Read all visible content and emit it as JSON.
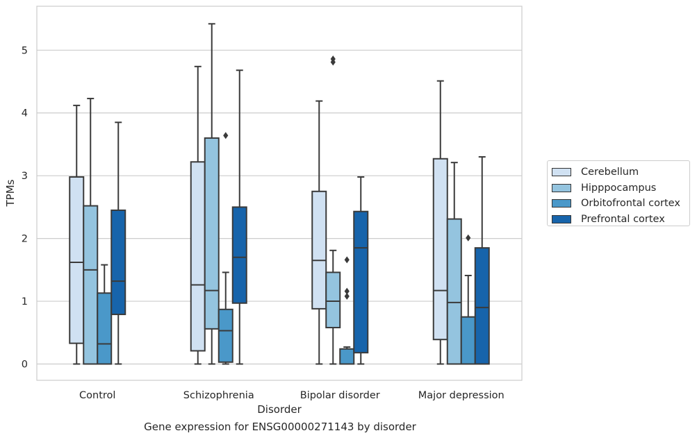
{
  "caption": "Gene expression for ENSG00000271143 by disorder",
  "chart_data": {
    "type": "box",
    "xlabel": "Disorder",
    "ylabel": "TPMs",
    "ylim": [
      -0.26,
      5.7
    ],
    "yticks": [
      0,
      1,
      2,
      3,
      4,
      5
    ],
    "grid": "horizontal",
    "legend_position": "right",
    "categories": [
      "Control",
      "Schizophrenia",
      "Bipolar disorder",
      "Major depression"
    ],
    "series": [
      {
        "name": "Cerebellum",
        "color": "#d0e1f2",
        "boxes": [
          {
            "whislo": 0.0,
            "q1": 0.33,
            "med": 1.62,
            "q3": 2.98,
            "whishi": 4.12,
            "fliers": []
          },
          {
            "whislo": 0.0,
            "q1": 0.21,
            "med": 1.26,
            "q3": 3.22,
            "whishi": 4.74,
            "fliers": []
          },
          {
            "whislo": 0.0,
            "q1": 0.88,
            "med": 1.65,
            "q3": 2.75,
            "whishi": 4.19,
            "fliers": []
          },
          {
            "whislo": 0.0,
            "q1": 0.39,
            "med": 1.17,
            "q3": 3.27,
            "whishi": 4.51,
            "fliers": []
          }
        ]
      },
      {
        "name": "Hipppocampus",
        "color": "#94c4df",
        "boxes": [
          {
            "whislo": 0.0,
            "q1": 0.0,
            "med": 1.5,
            "q3": 2.52,
            "whishi": 4.23,
            "fliers": []
          },
          {
            "whislo": 0.0,
            "q1": 0.56,
            "med": 1.17,
            "q3": 3.6,
            "whishi": 5.42,
            "fliers": []
          },
          {
            "whislo": 0.0,
            "q1": 0.58,
            "med": 1.0,
            "q3": 1.46,
            "whishi": 1.81,
            "fliers": [
              4.81,
              4.86
            ]
          },
          {
            "whislo": 0.0,
            "q1": 0.0,
            "med": 0.98,
            "q3": 2.31,
            "whishi": 3.21,
            "fliers": []
          }
        ]
      },
      {
        "name": "Orbitofrontal cortex",
        "color": "#4a98c9",
        "boxes": [
          {
            "whislo": 0.0,
            "q1": 0.0,
            "med": 0.32,
            "q3": 1.13,
            "whishi": 1.58,
            "fliers": []
          },
          {
            "whislo": 0.0,
            "q1": 0.03,
            "med": 0.53,
            "q3": 0.87,
            "whishi": 1.46,
            "fliers": [
              3.64
            ]
          },
          {
            "whislo": 0.0,
            "q1": 0.0,
            "med": 0.0,
            "q3": 0.24,
            "whishi": 0.27,
            "fliers": [
              1.08,
              1.16,
              1.66
            ]
          },
          {
            "whislo": 0.0,
            "q1": 0.0,
            "med": 0.0,
            "q3": 0.75,
            "whishi": 1.41,
            "fliers": [
              2.01
            ]
          }
        ]
      },
      {
        "name": "Prefrontal cortex",
        "color": "#1764ab",
        "boxes": [
          {
            "whislo": 0.0,
            "q1": 0.79,
            "med": 1.32,
            "q3": 2.45,
            "whishi": 3.85,
            "fliers": []
          },
          {
            "whislo": 0.0,
            "q1": 0.97,
            "med": 1.7,
            "q3": 2.5,
            "whishi": 4.68,
            "fliers": []
          },
          {
            "whislo": 0.0,
            "q1": 0.18,
            "med": 1.85,
            "q3": 2.43,
            "whishi": 2.98,
            "fliers": []
          },
          {
            "whislo": 0.0,
            "q1": 0.0,
            "med": 0.9,
            "q3": 1.85,
            "whishi": 3.3,
            "fliers": []
          }
        ]
      }
    ]
  }
}
